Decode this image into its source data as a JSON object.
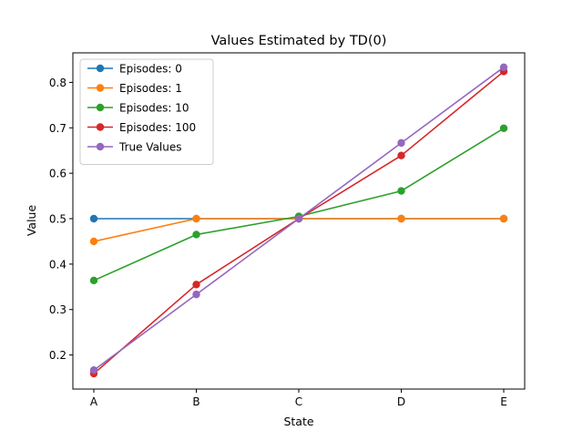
{
  "chart_data": {
    "type": "line",
    "title": "Values Estimated by TD(0)",
    "xlabel": "State",
    "ylabel": "Value",
    "categories": [
      "A",
      "B",
      "C",
      "D",
      "E"
    ],
    "ylim": [
      0.125,
      0.865
    ],
    "yticks": [
      0.2,
      0.3,
      0.4,
      0.5,
      0.6,
      0.7,
      0.8
    ],
    "ytick_labels": [
      "0.2",
      "0.3",
      "0.4",
      "0.5",
      "0.6",
      "0.7",
      "0.8"
    ],
    "grid": false,
    "legend_position": "top-left",
    "series": [
      {
        "name": "Episodes: 0",
        "color": "#1f77b4",
        "values": [
          0.5,
          0.5,
          0.5,
          0.5,
          0.5
        ]
      },
      {
        "name": "Episodes: 1",
        "color": "#ff7f0e",
        "values": [
          0.45,
          0.5,
          0.5,
          0.5,
          0.5
        ]
      },
      {
        "name": "Episodes: 10",
        "color": "#2ca02c",
        "values": [
          0.364,
          0.465,
          0.505,
          0.561,
          0.699
        ]
      },
      {
        "name": "Episodes: 100",
        "color": "#d62728",
        "values": [
          0.159,
          0.355,
          0.5,
          0.639,
          0.824
        ]
      },
      {
        "name": "True Values",
        "color": "#9467bd",
        "values": [
          0.1667,
          0.3333,
          0.5,
          0.6667,
          0.8333
        ]
      }
    ]
  }
}
